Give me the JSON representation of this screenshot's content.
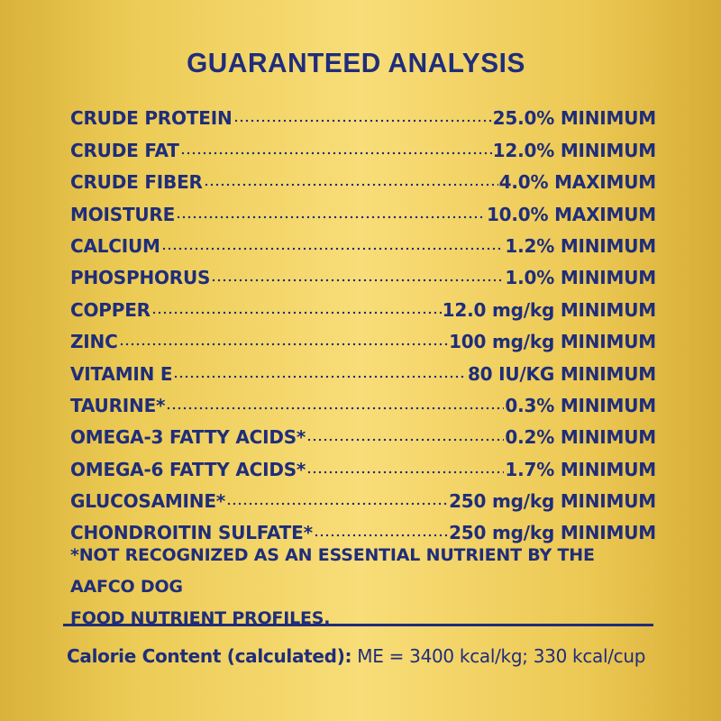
{
  "title": "GUARANTEED ANALYSIS",
  "rows": [
    {
      "label": "CRUDE PROTEIN",
      "value": "25.0% MINIMUM"
    },
    {
      "label": "CRUDE FAT",
      "value": "12.0% MINIMUM"
    },
    {
      "label": "CRUDE FIBER",
      "value": "4.0% MAXIMUM"
    },
    {
      "label": "MOISTURE",
      "value": "10.0% MAXIMUM"
    },
    {
      "label": "CALCIUM",
      "value": "1.2% MINIMUM"
    },
    {
      "label": "PHOSPHORUS",
      "value": "1.0% MINIMUM"
    },
    {
      "label": "COPPER",
      "value": "12.0 mg/kg MINIMUM"
    },
    {
      "label": "ZINC",
      "value": "100 mg/kg MINIMUM"
    },
    {
      "label": "VITAMIN E",
      "value": "80 IU/KG MINIMUM"
    },
    {
      "label": "TAURINE*",
      "value": "0.3% MINIMUM"
    },
    {
      "label": "OMEGA-3 FATTY ACIDS*",
      "value": "0.2% MINIMUM"
    },
    {
      "label": "OMEGA-6 FATTY ACIDS*",
      "value": "1.7% MINIMUM"
    },
    {
      "label": "GLUCOSAMINE*",
      "value": "250 mg/kg MINIMUM"
    },
    {
      "label": "CHONDROITIN SULFATE*",
      "value": "250 mg/kg MINIMUM"
    }
  ],
  "footnote": {
    "line1": "*NOT RECOGNIZED AS AN ESSENTIAL NUTRIENT BY THE AAFCO DOG",
    "line2": "FOOD NUTRIENT PROFILES."
  },
  "calorie": {
    "label": "Calorie Content (calculated):",
    "value": " ME = 3400 kcal/kg; 330 kcal/cup"
  },
  "colors": {
    "text": "#1f2d7a",
    "background": "#f8dd78"
  }
}
